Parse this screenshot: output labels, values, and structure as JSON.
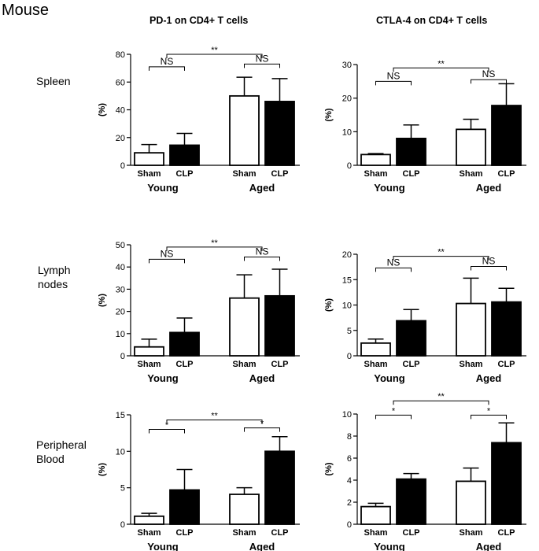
{
  "figure": {
    "species_label": "Mouse",
    "column_titles": [
      "PD-1 on CD4+ T cells",
      "CTLA-4 on CD4+ T cells"
    ],
    "row_labels": [
      [
        "Spleen"
      ],
      [
        "Lymph",
        "nodes"
      ],
      [
        "Peripheral",
        "Blood"
      ]
    ]
  },
  "colors": {
    "ink": "#000000",
    "sham_fill": "#ffffff",
    "clp_fill": "#000000"
  },
  "chart_data": [
    {
      "type": "bar",
      "title": "PD-1 on CD4+ T cells",
      "row": "Spleen",
      "ylabel": "(%)",
      "ylim": [
        0,
        80
      ],
      "yticks": [
        0,
        20,
        40,
        60,
        80
      ],
      "categories": [
        "Sham",
        "CLP",
        "Sham",
        "CLP"
      ],
      "groups": [
        "Young",
        "Aged"
      ],
      "series": [
        {
          "name": "(%)",
          "values": [
            9,
            14.5,
            50,
            46
          ],
          "errors": [
            6,
            8.5,
            13.5,
            16.5
          ]
        }
      ],
      "fills": [
        "white",
        "black",
        "white",
        "black"
      ],
      "annotations": [
        {
          "from": 0,
          "to": 1,
          "label": "NS",
          "y": 71
        },
        {
          "from": 2,
          "to": 3,
          "label": "NS",
          "y": 73
        },
        {
          "from": 0.5,
          "to": 2.5,
          "label": "**",
          "y": 80
        }
      ]
    },
    {
      "type": "bar",
      "title": "CTLA-4 on CD4+ T cells",
      "row": "Spleen",
      "ylabel": "(%)",
      "ylim": [
        0,
        30
      ],
      "yticks": [
        0,
        10,
        20,
        30
      ],
      "categories": [
        "Sham",
        "CLP",
        "Sham",
        "CLP"
      ],
      "groups": [
        "Young",
        "Aged"
      ],
      "series": [
        {
          "name": "(%)",
          "values": [
            3.2,
            8,
            10.7,
            17.8
          ],
          "errors": [
            0.3,
            4,
            3,
            6.5
          ]
        }
      ],
      "fills": [
        "white",
        "black",
        "white",
        "black"
      ],
      "annotations": [
        {
          "from": 0,
          "to": 1,
          "label": "NS",
          "y": 25
        },
        {
          "from": 2,
          "to": 3,
          "label": "NS",
          "y": 25.5
        },
        {
          "from": 0.5,
          "to": 2.5,
          "label": "**",
          "y": 29
        }
      ]
    },
    {
      "type": "bar",
      "title": "PD-1 on CD4+ T cells",
      "row": "Lymph nodes",
      "ylabel": "(%)",
      "ylim": [
        0,
        50
      ],
      "yticks": [
        0,
        10,
        20,
        30,
        40,
        50
      ],
      "categories": [
        "Sham",
        "CLP",
        "Sham",
        "CLP"
      ],
      "groups": [
        "Young",
        "Aged"
      ],
      "series": [
        {
          "name": "(%)",
          "values": [
            4,
            10.5,
            26,
            27
          ],
          "errors": [
            3.5,
            6.5,
            10.5,
            12
          ]
        }
      ],
      "fills": [
        "white",
        "black",
        "white",
        "black"
      ],
      "annotations": [
        {
          "from": 0,
          "to": 1,
          "label": "NS",
          "y": 43.5
        },
        {
          "from": 2,
          "to": 3,
          "label": "NS",
          "y": 44.5
        },
        {
          "from": 0.5,
          "to": 2.5,
          "label": "**",
          "y": 49
        }
      ]
    },
    {
      "type": "bar",
      "title": "CTLA-4 on CD4+ T cells",
      "row": "Lymph nodes",
      "ylabel": "(%)",
      "ylim": [
        0,
        20
      ],
      "yticks": [
        0,
        5,
        10,
        15,
        20
      ],
      "categories": [
        "Sham",
        "CLP",
        "Sham",
        "CLP"
      ],
      "groups": [
        "Young",
        "Aged"
      ],
      "series": [
        {
          "name": "(%)",
          "values": [
            2.5,
            6.9,
            10.3,
            10.6
          ],
          "errors": [
            0.8,
            2.2,
            5,
            2.7
          ]
        }
      ],
      "fills": [
        "white",
        "black",
        "white",
        "black"
      ],
      "annotations": [
        {
          "from": 0,
          "to": 1,
          "label": "NS",
          "y": 17.3
        },
        {
          "from": 2,
          "to": 3,
          "label": "NS",
          "y": 17.6
        },
        {
          "from": 0.5,
          "to": 2.5,
          "label": "**",
          "y": 19.6
        }
      ]
    },
    {
      "type": "bar",
      "title": "PD-1 on CD4+ T cells",
      "row": "Peripheral Blood",
      "ylabel": "(%)",
      "ylim": [
        0,
        15
      ],
      "yticks": [
        0,
        5,
        10,
        15
      ],
      "categories": [
        "Sham",
        "CLP",
        "Sham",
        "CLP"
      ],
      "groups": [
        "Young",
        "Aged"
      ],
      "series": [
        {
          "name": "(%)",
          "values": [
            1.1,
            4.7,
            4.1,
            10
          ],
          "errors": [
            0.4,
            2.8,
            0.9,
            2
          ]
        }
      ],
      "fills": [
        "white",
        "black",
        "white",
        "black"
      ],
      "annotations": [
        {
          "from": 0,
          "to": 1,
          "label": "*",
          "y": 13
        },
        {
          "from": 2,
          "to": 3,
          "label": "*",
          "y": 13.2
        },
        {
          "from": 0.5,
          "to": 2.5,
          "label": "**",
          "y": 14.3
        }
      ]
    },
    {
      "type": "bar",
      "title": "CTLA-4 on CD4+ T cells",
      "row": "Peripheral Blood",
      "ylabel": "(%)",
      "ylim": [
        0,
        10
      ],
      "yticks": [
        0,
        2,
        4,
        6,
        8,
        10
      ],
      "categories": [
        "Sham",
        "CLP",
        "Sham",
        "CLP"
      ],
      "groups": [
        "Young",
        "Aged"
      ],
      "series": [
        {
          "name": "(%)",
          "values": [
            1.6,
            4.1,
            3.9,
            7.4
          ],
          "errors": [
            0.3,
            0.5,
            1.2,
            1.8
          ]
        }
      ],
      "fills": [
        "white",
        "black",
        "white",
        "black"
      ],
      "annotations": [
        {
          "from": 0,
          "to": 1,
          "label": "*",
          "y": 9.9
        },
        {
          "from": 2,
          "to": 3,
          "label": "*",
          "y": 9.9
        },
        {
          "from": 0.5,
          "to": 2.5,
          "label": "**",
          "y": 11.2
        }
      ]
    }
  ]
}
